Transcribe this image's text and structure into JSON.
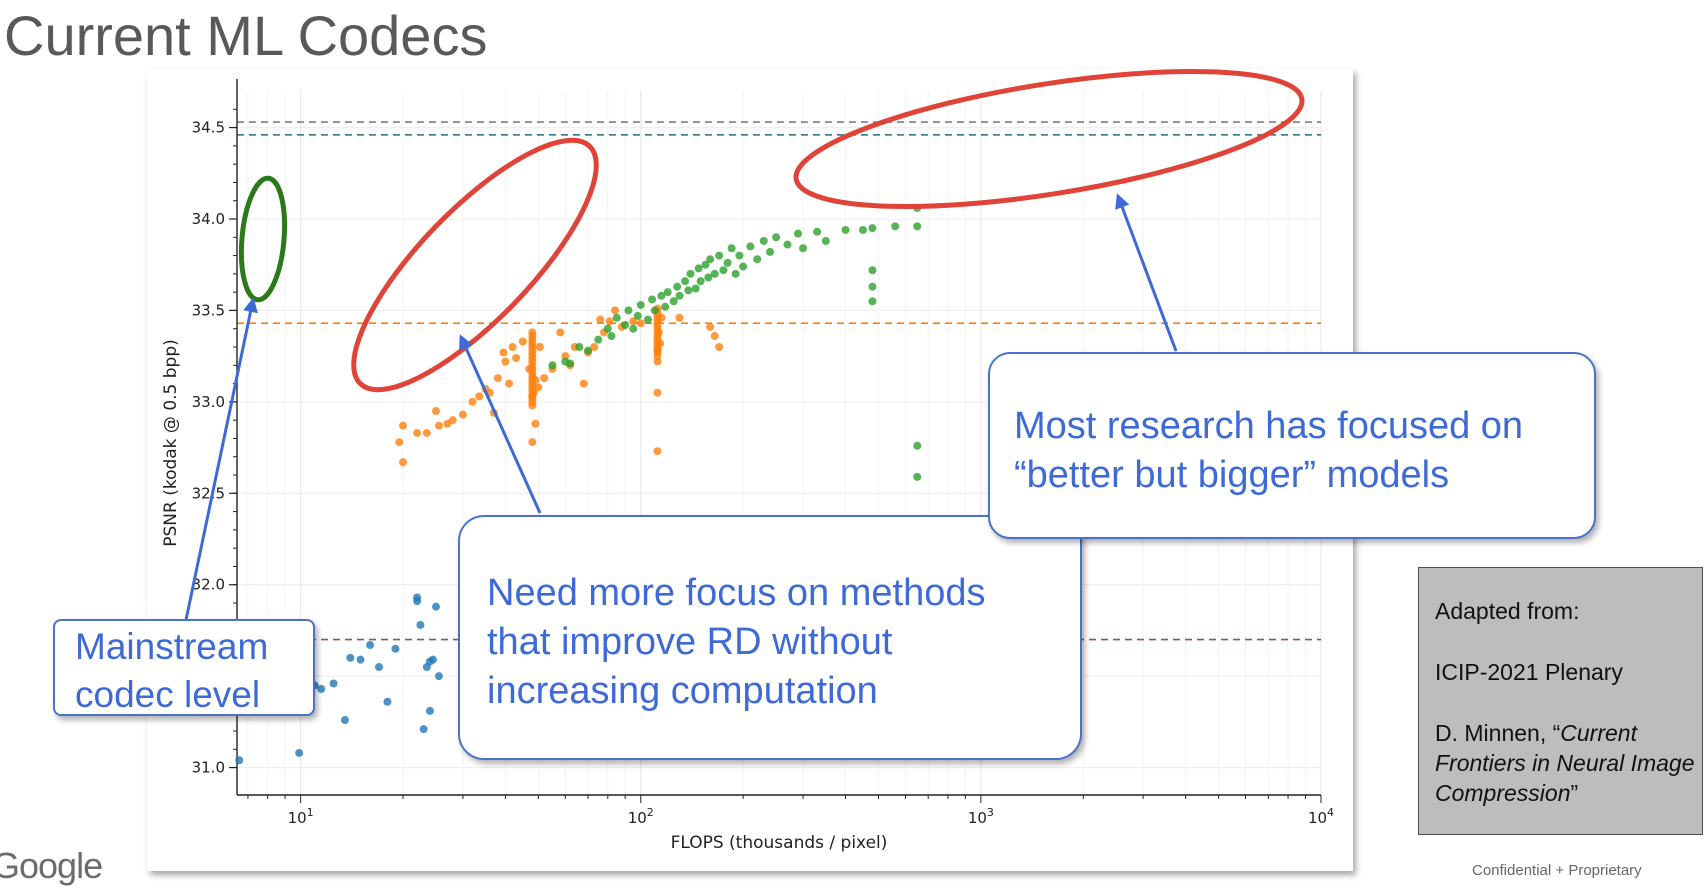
{
  "title": "Current ML Codecs",
  "chart_data": {
    "type": "scatter",
    "xlabel": "FLOPS (thousands / pixel)",
    "ylabel": "PSNR (kodak @ 0.5 bpp)",
    "x_scale": "log",
    "xlim": [
      6.5,
      10000
    ],
    "ylim": [
      30.85,
      34.7
    ],
    "x_ticks": [
      10,
      100,
      1000,
      10000
    ],
    "x_tick_labels": [
      {
        "base": "10",
        "exp": "1"
      },
      {
        "base": "10",
        "exp": "2"
      },
      {
        "base": "10",
        "exp": "3"
      },
      {
        "base": "10",
        "exp": "4"
      }
    ],
    "y_ticks": [
      31.0,
      31.5,
      32.0,
      32.5,
      33.0,
      33.5,
      34.0,
      34.5
    ],
    "y_tick_labels": [
      "31.0",
      "31.5",
      "32.0",
      "32.5",
      "33.0",
      "33.5",
      "34.0",
      "34.5"
    ],
    "grid": true,
    "reference_lines": [
      {
        "y": 34.53,
        "color": "#7f7f7f"
      },
      {
        "y": 34.46,
        "color": "#1f6f8b"
      },
      {
        "y": 33.43,
        "color": "#ff7f0e"
      },
      {
        "y": 31.7,
        "color": "#8c564b"
      }
    ],
    "series": [
      {
        "color": "#1f77b4",
        "points": [
          [
            6.6,
            31.04
          ],
          [
            9.9,
            31.08
          ],
          [
            11.0,
            31.45
          ],
          [
            11.5,
            31.43
          ],
          [
            12.5,
            31.46
          ],
          [
            13.5,
            31.26
          ],
          [
            14.0,
            31.6
          ],
          [
            15.0,
            31.59
          ],
          [
            16.0,
            31.67
          ],
          [
            17.0,
            31.55
          ],
          [
            18.0,
            31.36
          ],
          [
            19.0,
            31.65
          ],
          [
            22.5,
            31.78
          ],
          [
            23.0,
            31.21
          ],
          [
            23.5,
            31.55
          ],
          [
            24.0,
            31.31
          ],
          [
            24.0,
            31.58
          ],
          [
            24.5,
            31.59
          ],
          [
            25.5,
            31.5
          ],
          [
            22.0,
            31.93
          ],
          [
            22.0,
            31.91
          ],
          [
            25.0,
            31.88
          ]
        ]
      },
      {
        "color": "#ff7f0e",
        "points": [
          [
            19.5,
            32.78
          ],
          [
            20.0,
            32.87
          ],
          [
            20.0,
            32.67
          ],
          [
            22.0,
            32.83
          ],
          [
            23.5,
            32.83
          ],
          [
            25.0,
            32.95
          ],
          [
            25.5,
            32.87
          ],
          [
            27.0,
            32.88
          ],
          [
            28.0,
            32.9
          ],
          [
            30.0,
            32.93
          ],
          [
            32.0,
            33.0
          ],
          [
            33.5,
            33.03
          ],
          [
            35.0,
            33.07
          ],
          [
            36.0,
            33.05
          ],
          [
            37.0,
            32.94
          ],
          [
            38.0,
            33.13
          ],
          [
            39.5,
            33.27
          ],
          [
            40.0,
            33.22
          ],
          [
            41.0,
            33.1
          ],
          [
            42.0,
            33.3
          ],
          [
            43.0,
            33.24
          ],
          [
            45.0,
            33.33
          ],
          [
            47.0,
            33.18
          ],
          [
            48.0,
            33.03
          ],
          [
            48.0,
            32.98
          ],
          [
            48.0,
            32.78
          ],
          [
            48.5,
            33.05
          ],
          [
            49.0,
            33.12
          ],
          [
            49.0,
            32.88
          ],
          [
            50.0,
            33.08
          ],
          [
            50.5,
            33.3
          ],
          [
            52.0,
            33.13
          ],
          [
            55.0,
            33.18
          ],
          [
            58.0,
            33.38
          ],
          [
            60.0,
            33.25
          ],
          [
            62.0,
            33.2
          ],
          [
            64.0,
            33.3
          ],
          [
            68.0,
            33.1
          ],
          [
            70.0,
            33.27
          ],
          [
            73.0,
            33.3
          ],
          [
            76.0,
            33.45
          ],
          [
            78.0,
            33.38
          ],
          [
            81.0,
            33.44
          ],
          [
            84.0,
            33.5
          ],
          [
            88.0,
            33.41
          ],
          [
            95.0,
            33.44
          ],
          [
            100.0,
            33.43
          ],
          [
            112.0,
            33.28
          ],
          [
            112.0,
            33.22
          ],
          [
            112.0,
            33.05
          ],
          [
            112.0,
            32.73
          ],
          [
            113.0,
            33.38
          ],
          [
            114.0,
            33.32
          ],
          [
            115.0,
            33.46
          ],
          [
            130.0,
            33.46
          ],
          [
            160.0,
            33.41
          ],
          [
            165.0,
            33.36
          ],
          [
            170.0,
            33.3
          ]
        ],
        "vertical_clusters": [
          {
            "x": 48.0,
            "y_from": 33.0,
            "y_to": 33.38
          },
          {
            "x": 112.0,
            "y_from": 33.25,
            "y_to": 33.52
          }
        ]
      },
      {
        "color": "#2ca02c",
        "points": [
          [
            55.0,
            33.2
          ],
          [
            60.0,
            33.22
          ],
          [
            62.0,
            33.21
          ],
          [
            66.0,
            33.3
          ],
          [
            70.0,
            33.28
          ],
          [
            75.0,
            33.34
          ],
          [
            80.0,
            33.4
          ],
          [
            82.0,
            33.36
          ],
          [
            85.0,
            33.46
          ],
          [
            90.0,
            33.42
          ],
          [
            92.0,
            33.5
          ],
          [
            95.0,
            33.4
          ],
          [
            98.0,
            33.47
          ],
          [
            100.0,
            33.53
          ],
          [
            105.0,
            33.45
          ],
          [
            108.0,
            33.56
          ],
          [
            110.0,
            33.5
          ],
          [
            115.0,
            33.58
          ],
          [
            118.0,
            33.52
          ],
          [
            120.0,
            33.6
          ],
          [
            125.0,
            33.55
          ],
          [
            128.0,
            33.63
          ],
          [
            130.0,
            33.58
          ],
          [
            135.0,
            33.66
          ],
          [
            138.0,
            33.61
          ],
          [
            140.0,
            33.7
          ],
          [
            145.0,
            33.62
          ],
          [
            148.0,
            33.73
          ],
          [
            150.0,
            33.66
          ],
          [
            155.0,
            33.75
          ],
          [
            158.0,
            33.68
          ],
          [
            160.0,
            33.78
          ],
          [
            165.0,
            33.7
          ],
          [
            170.0,
            33.8
          ],
          [
            175.0,
            33.72
          ],
          [
            180.0,
            33.76
          ],
          [
            185.0,
            33.84
          ],
          [
            190.0,
            33.7
          ],
          [
            195.0,
            33.8
          ],
          [
            200.0,
            33.74
          ],
          [
            210.0,
            33.85
          ],
          [
            220.0,
            33.78
          ],
          [
            230.0,
            33.88
          ],
          [
            240.0,
            33.82
          ],
          [
            250.0,
            33.9
          ],
          [
            270.0,
            33.86
          ],
          [
            290.0,
            33.92
          ],
          [
            300.0,
            33.84
          ],
          [
            330.0,
            33.93
          ],
          [
            350.0,
            33.88
          ],
          [
            400.0,
            33.94
          ],
          [
            450.0,
            33.94
          ],
          [
            480.0,
            33.95
          ],
          [
            480.0,
            33.72
          ],
          [
            480.0,
            33.63
          ],
          [
            480.0,
            33.55
          ],
          [
            560.0,
            33.96
          ],
          [
            650.0,
            33.96
          ],
          [
            650.0,
            34.06
          ],
          [
            650.0,
            32.76
          ],
          [
            650.0,
            32.59
          ]
        ]
      }
    ],
    "annotations": [
      {
        "type": "ellipse",
        "color": "#2a7a1a"
      },
      {
        "type": "ellipse",
        "color": "#e04438"
      },
      {
        "type": "ellipse",
        "color": "#e04438"
      }
    ]
  },
  "callouts": {
    "mainstream": [
      "Mainstream",
      "codec level"
    ],
    "focus": [
      "Need more focus on methods",
      "that improve RD without",
      "increasing computation"
    ],
    "research": [
      "Most research has focused on",
      "“better but bigger” models"
    ]
  },
  "source": {
    "line1": "Adapted from:",
    "line2": "ICIP-2021 Plenary",
    "author": "D. Minnen, “",
    "italic": "Current Frontiers in Neural Image Compression",
    "end": "”"
  },
  "logo": "Google",
  "footer": "Confidential + Proprietary"
}
